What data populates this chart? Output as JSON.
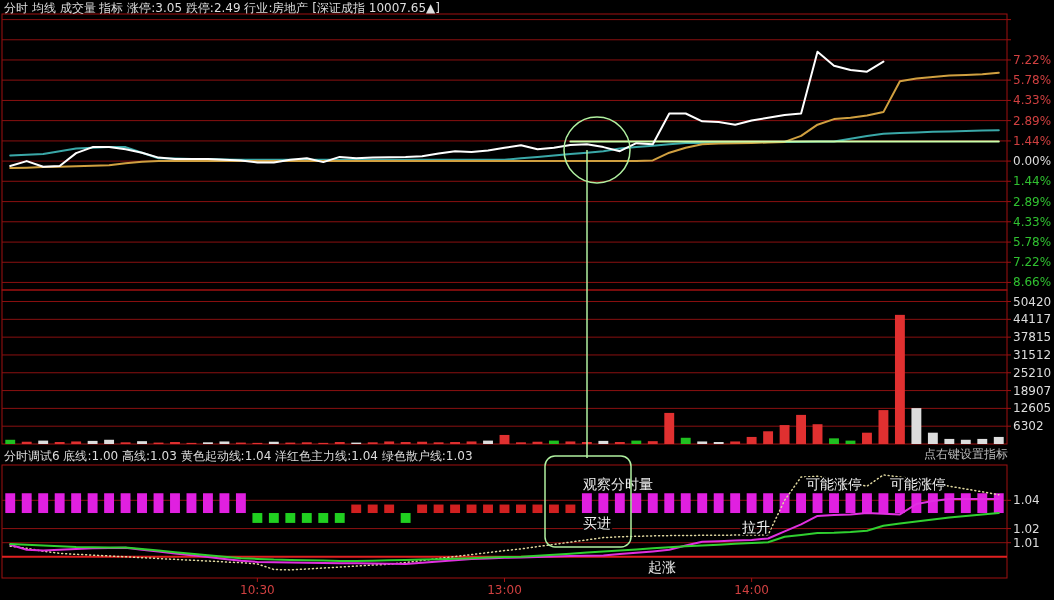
{
  "chart_data": [
    {
      "type": "line",
      "title": "分时 均线 成交量 指标 涨停:3.05 跌停:2.49 行业:房地产 [深证成指 10007.65▲]",
      "ylim": [
        -9.2,
        10.5
      ],
      "grid": "y",
      "tick_labels": "y",
      "categories": [
        null,
        null,
        null,
        null,
        null,
        null,
        null,
        null,
        null,
        null,
        null,
        null,
        null,
        null,
        null,
        null,
        null,
        null,
        null,
        null,
        null,
        null,
        null,
        null,
        null,
        null,
        null,
        null,
        null,
        null,
        null,
        null,
        null,
        null,
        null,
        null,
        null,
        null,
        null,
        null,
        null,
        null,
        null,
        null,
        null,
        null,
        null,
        null,
        null,
        null,
        null,
        null,
        null,
        null,
        null,
        null,
        null,
        null,
        null,
        null,
        null
      ],
      "yticks": [
        {
          "value": 10.1,
          "label": null
        },
        {
          "value": 8.66,
          "label": null
        },
        {
          "value": 7.22,
          "label": "7.22%"
        },
        {
          "value": 5.78,
          "label": "5.78%"
        },
        {
          "value": 4.33,
          "label": "4.33%"
        },
        {
          "value": 2.89,
          "label": "2.89%"
        },
        {
          "value": 1.44,
          "label": "1.44%"
        },
        {
          "value": 0,
          "label": "0.00%"
        },
        {
          "value": -1.44,
          "label": "1.44%"
        },
        {
          "value": -2.89,
          "label": "2.89%"
        },
        {
          "value": -4.33,
          "label": "4.33%"
        },
        {
          "value": -5.78,
          "label": "5.78%"
        },
        {
          "value": -7.22,
          "label": "7.22%"
        },
        {
          "value": -8.66,
          "label": "8.66%"
        }
      ],
      "series": [
        {
          "color": "#3aa8a8",
          "values": [
            0.4,
            0.45,
            0.5,
            0.7,
            0.9,
            0.95,
            1.0,
            1.0,
            0.6,
            0.2,
            0.18,
            0.16,
            0.14,
            0.12,
            0.1,
            0.1,
            0.1,
            0.1,
            0.1,
            0.1,
            0.1,
            0.1,
            0.1,
            0.1,
            0.1,
            0.1,
            0.1,
            0.1,
            0.1,
            0.1,
            0.1,
            0.2,
            0.3,
            0.4,
            0.5,
            0.6,
            0.7,
            0.9,
            1.0,
            1.1,
            1.2,
            1.3,
            1.3,
            1.32,
            1.34,
            1.35,
            1.36,
            1.37,
            1.38,
            1.4,
            1.4,
            1.6,
            1.8,
            1.95,
            2.0,
            2.05,
            2.1,
            2.12,
            2.15,
            2.18,
            2.2
          ]
        },
        {
          "color": "#d0a040",
          "values": [
            -0.5,
            -0.47,
            -0.43,
            -0.4,
            -0.37,
            -0.33,
            -0.3,
            -0.15,
            -0.05,
            0,
            0,
            0,
            0,
            0,
            0,
            0,
            0,
            0,
            0,
            0,
            0,
            0,
            0,
            0,
            0,
            0,
            0,
            0,
            0,
            0,
            0,
            0,
            0,
            0,
            0,
            0,
            0,
            0,
            0,
            0.05,
            0.6,
            0.95,
            1.2,
            1.25,
            1.28,
            1.3,
            1.33,
            1.37,
            1.8,
            2.6,
            3.0,
            3.1,
            3.25,
            3.5,
            5.7,
            5.9,
            6.0,
            6.1,
            6.15,
            6.2,
            6.3
          ]
        },
        {
          "color": "#ccffaa",
          "values": [
            null,
            null,
            null,
            null,
            null,
            null,
            null,
            null,
            null,
            null,
            null,
            null,
            null,
            null,
            null,
            null,
            null,
            null,
            null,
            null,
            null,
            null,
            null,
            null,
            null,
            null,
            null,
            null,
            null,
            null,
            null,
            null,
            null,
            null,
            1.4,
            1.4,
            1.4,
            1.4,
            1.4,
            1.4,
            1.4,
            1.4,
            1.4,
            1.4,
            1.4,
            1.4,
            1.4,
            1.4,
            1.4,
            1.4,
            1.4,
            1.4,
            1.4,
            1.4,
            1.4,
            1.4,
            1.4,
            1.4,
            1.4,
            1.4,
            1.4
          ]
        },
        {
          "color": "#ffffff",
          "values": [
            -0.35,
            0,
            -0.4,
            -0.35,
            0.57,
            1.0,
            1.0,
            0.85,
            0.6,
            0.25,
            0.14,
            0.14,
            0.14,
            0.1,
            0.05,
            -0.1,
            -0.1,
            0.1,
            0.2,
            -0.07,
            0.3,
            0.21,
            0.25,
            0.28,
            0.3,
            0.35,
            0.55,
            0.71,
            0.66,
            0.75,
            0.95,
            1.13,
            0.85,
            0.95,
            1.15,
            1.2,
            1.0,
            0.71,
            1.28,
            1.21,
            3.4,
            3.4,
            2.84,
            2.8,
            2.6,
            2.9,
            3.1,
            3.3,
            3.4,
            7.8,
            6.81,
            6.5,
            6.38,
            7.1,
            null,
            null,
            null,
            null,
            null,
            null,
            null
          ]
        }
      ]
    },
    {
      "type": "bar",
      "ylim": [
        0,
        54500
      ],
      "grid": "y",
      "tick_labels": "y",
      "categories": [
        null,
        null,
        null,
        null,
        null,
        null,
        null,
        null,
        null,
        null,
        null,
        null,
        null,
        null,
        null,
        null,
        null,
        null,
        null,
        null,
        null,
        null,
        null,
        null,
        null,
        null,
        null,
        null,
        null,
        null,
        null,
        null,
        null,
        null,
        null,
        null,
        null,
        null,
        null,
        null,
        null,
        null,
        null,
        null,
        null,
        null,
        null,
        null,
        null,
        null,
        null,
        null,
        null,
        null,
        null,
        null,
        null,
        null,
        null,
        null,
        null
      ],
      "yticks": [
        6302,
        12605,
        18907,
        25210,
        31512,
        37815,
        44117,
        50420
      ],
      "values": [
        1500,
        800,
        1200,
        700,
        900,
        1100,
        1500,
        600,
        1000,
        500,
        700,
        400,
        600,
        900,
        500,
        400,
        800,
        500,
        600,
        400,
        700,
        500,
        600,
        900,
        700,
        800,
        600,
        700,
        900,
        1200,
        3200,
        600,
        800,
        1200,
        900,
        700,
        1100,
        700,
        1200,
        1000,
        11000,
        2200,
        900,
        700,
        900,
        2500,
        4500,
        6700,
        10300,
        7000,
        2000,
        1200,
        4000,
        12000,
        45700,
        12700,
        4000,
        1800,
        1500,
        1800,
        2500
      ],
      "colors": [
        "#20c020",
        "#e03030",
        "#dddddd",
        "#e03030",
        "#e03030",
        "#dddddd",
        "#dddddd",
        "#e03030",
        "#dddddd",
        "#e03030",
        "#e03030",
        "#e03030",
        "#dddddd",
        "#dddddd",
        "#e03030",
        "#e03030",
        "#dddddd",
        "#e03030",
        "#e03030",
        "#e03030",
        "#e03030",
        "#dddddd",
        "#e03030",
        "#e03030",
        "#e03030",
        "#e03030",
        "#e03030",
        "#e03030",
        "#e03030",
        "#dddddd",
        "#e03030",
        "#e03030",
        "#e03030",
        "#20c020",
        "#e03030",
        "#e03030",
        "#dddddd",
        "#e03030",
        "#20c020",
        "#e03030",
        "#e03030",
        "#20c020",
        "#dddddd",
        "#dddddd",
        "#e03030",
        "#e03030",
        "#e03030",
        "#e03030",
        "#e03030",
        "#e03030",
        "#20c020",
        "#20c020",
        "#e03030",
        "#e03030",
        "#e03030",
        "#dddddd",
        "#dddddd",
        "#dddddd",
        "#dddddd",
        "#dddddd",
        "#dddddd"
      ]
    },
    {
      "type": "line",
      "title": "分时调试6  底线:1.00  高线:1.03  黄色起动线:1.04  洋红色主力线:1.04  绿色散户线:1.03",
      "ylim": [
        0.985,
        1.065
      ],
      "grid": "y",
      "categories": [
        null,
        null,
        null,
        null,
        null,
        null,
        null,
        null,
        null,
        null,
        null,
        null,
        null,
        null,
        null,
        "10:30",
        null,
        null,
        null,
        null,
        null,
        null,
        null,
        null,
        null,
        null,
        null,
        null,
        null,
        null,
        "13:00",
        null,
        null,
        null,
        null,
        null,
        null,
        null,
        null,
        null,
        null,
        null,
        null,
        null,
        null,
        "14:00",
        null,
        null,
        null,
        null,
        null,
        null,
        null,
        null,
        null,
        null,
        null,
        null,
        null,
        null,
        null
      ],
      "yticks": [
        1.01,
        1.02,
        1.04
      ],
      "ref_lines": [
        {
          "axis": "y",
          "value": 1.0,
          "color": "#e02020"
        }
      ],
      "series": [
        {
          "type": "bar",
          "color": "#e020e0",
          "base": [
            1.031,
            1.031,
            1.031,
            1.031,
            1.031,
            1.031,
            1.031,
            1.031,
            1.031,
            1.031,
            1.031,
            1.031,
            1.031,
            1.031,
            1.031,
            null,
            null,
            null,
            null,
            null,
            null,
            null,
            null,
            null,
            null,
            null,
            null,
            null,
            null,
            null,
            null,
            null,
            null,
            null,
            null,
            1.031,
            1.031,
            1.031,
            1.031,
            1.031,
            1.031,
            1.031,
            1.031,
            1.031,
            1.031,
            1.031,
            1.031,
            1.031,
            1.031,
            1.031,
            1.031,
            1.031,
            1.031,
            1.031,
            1.031,
            1.031,
            1.031,
            1.031,
            1.031,
            1.031,
            1.031
          ],
          "values": [
            0.014,
            0.014,
            0.014,
            0.014,
            0.014,
            0.014,
            0.014,
            0.014,
            0.014,
            0.014,
            0.014,
            0.014,
            0.014,
            0.014,
            0.014,
            null,
            null,
            null,
            null,
            null,
            null,
            null,
            null,
            null,
            null,
            null,
            null,
            null,
            null,
            null,
            null,
            null,
            null,
            null,
            null,
            0.014,
            0.014,
            0.014,
            0.014,
            0.014,
            0.014,
            0.014,
            0.014,
            0.014,
            0.014,
            0.014,
            0.014,
            0.014,
            0.014,
            0.014,
            0.014,
            0.014,
            0.014,
            0.014,
            0.014,
            0.014,
            0.014,
            0.014,
            0.014,
            0.014,
            0.014
          ]
        },
        {
          "type": "bar",
          "color": "#20d020",
          "base": [
            null,
            null,
            null,
            null,
            null,
            null,
            null,
            null,
            null,
            null,
            null,
            null,
            null,
            null,
            null,
            1.024,
            1.024,
            1.024,
            1.024,
            1.024,
            1.024,
            null,
            null,
            null,
            1.024,
            null,
            null,
            null,
            null,
            null,
            null,
            null,
            null,
            null,
            null,
            null,
            null,
            null,
            null,
            null,
            null,
            null,
            null,
            null,
            null,
            null,
            null,
            null,
            null,
            null,
            null,
            null,
            null,
            null,
            null,
            null,
            null,
            null,
            null,
            null,
            null
          ],
          "values": [
            null,
            null,
            null,
            null,
            null,
            null,
            null,
            null,
            null,
            null,
            null,
            null,
            null,
            null,
            null,
            0.007,
            0.007,
            0.007,
            0.007,
            0.007,
            0.007,
            null,
            null,
            null,
            0.007,
            null,
            null,
            null,
            null,
            null,
            null,
            null,
            null,
            null,
            null,
            null,
            null,
            null,
            null,
            null,
            null,
            null,
            null,
            null,
            null,
            null,
            null,
            null,
            null,
            null,
            null,
            null,
            null,
            null,
            null,
            null,
            null,
            null,
            null,
            null,
            null
          ]
        },
        {
          "type": "bar",
          "color": "#d02020",
          "base": [
            null,
            null,
            null,
            null,
            null,
            null,
            null,
            null,
            null,
            null,
            null,
            null,
            null,
            null,
            null,
            null,
            null,
            null,
            null,
            null,
            null,
            1.031,
            1.031,
            1.031,
            null,
            1.031,
            1.031,
            1.031,
            1.031,
            1.031,
            1.031,
            1.031,
            1.031,
            1.031,
            1.031,
            null,
            null,
            null,
            null,
            null,
            null,
            null,
            null,
            null,
            null,
            null,
            null,
            null,
            null,
            null,
            null,
            null,
            null,
            null,
            null,
            null,
            null,
            null,
            null,
            null,
            null
          ],
          "values": [
            null,
            null,
            null,
            null,
            null,
            null,
            null,
            null,
            null,
            null,
            null,
            null,
            null,
            null,
            null,
            null,
            null,
            null,
            null,
            null,
            null,
            0.006,
            0.006,
            0.006,
            null,
            0.006,
            0.006,
            0.006,
            0.006,
            0.006,
            0.006,
            0.006,
            0.006,
            0.006,
            0.006,
            null,
            null,
            null,
            null,
            null,
            null,
            null,
            null,
            null,
            null,
            null,
            null,
            null,
            null,
            null,
            null,
            null,
            null,
            null,
            null,
            null,
            null,
            null,
            null,
            null,
            null
          ]
        },
        {
          "color": "#e0d8a0",
          "line_style": "dotted",
          "values": [
            1.0075,
            1.006,
            1.004,
            1.0025,
            1.0018,
            1.0012,
            1.0006,
            1.0,
            0.9994,
            0.9988,
            0.9982,
            0.9976,
            0.997,
            0.9964,
            0.9958,
            0.995,
            0.991,
            0.9907,
            0.9914,
            0.9921,
            0.9928,
            0.9934,
            0.9941,
            0.9948,
            0.996,
            0.9974,
            0.9988,
            1.0002,
            1.0016,
            1.003,
            1.0044,
            1.0056,
            1.0072,
            1.0088,
            1.0104,
            1.012,
            1.0136,
            1.0142,
            1.0145,
            1.0148,
            1.015,
            1.0151,
            1.0152,
            1.0153,
            1.0154,
            1.0155,
            1.0155,
            1.04,
            1.0565,
            1.057,
            1.055,
            1.0525,
            1.05,
            1.058,
            1.0565,
            1.055,
            1.0525,
            1.05,
            1.048,
            1.046,
            1.044
          ]
        },
        {
          "color": "#e030e0",
          "values": [
            1.0085,
            1.005,
            1.0045,
            1.005,
            1.0055,
            1.006,
            1.0062,
            1.0064,
            1.005,
            1.0037,
            1.0024,
            1.0011,
            0.9998,
            0.9985,
            0.9972,
            0.9964,
            0.9962,
            0.996,
            0.9958,
            0.9957,
            0.9955,
            0.9954,
            0.9952,
            0.9951,
            0.995,
            0.9958,
            0.9967,
            0.9976,
            0.9985,
            0.9989,
            0.9993,
            0.9996,
            0.9999,
            1.0002,
            1.0005,
            1.0008,
            1.001,
            1.0019,
            1.0029,
            1.0038,
            1.005,
            1.008,
            1.0106,
            1.011,
            1.0115,
            1.012,
            1.013,
            1.018,
            1.023,
            1.029,
            1.0295,
            1.03,
            1.031,
            1.0305,
            1.03,
            1.0374,
            1.0395,
            1.041,
            1.041,
            1.041,
            1.041
          ]
        },
        {
          "color": "#30d030",
          "values": [
            1.009,
            1.0085,
            1.008,
            1.0075,
            1.007,
            1.0068,
            1.0065,
            1.0065,
            1.0055,
            1.0044,
            1.0033,
            1.0022,
            1.0011,
            1.0,
            0.999,
            0.9985,
            0.998,
            0.9978,
            0.9975,
            0.9973,
            0.9971,
            0.997,
            0.9972,
            0.9975,
            0.9978,
            0.998,
            0.9983,
            0.9986,
            0.999,
            0.9995,
            0.9998,
            1.0,
            1.0007,
            1.0015,
            1.0022,
            1.003,
            1.0037,
            1.0044,
            1.0052,
            1.006,
            1.0068,
            1.0075,
            1.008,
            1.0086,
            1.0092,
            1.0098,
            1.0103,
            1.0142,
            1.0155,
            1.0168,
            1.017,
            1.0175,
            1.0184,
            1.022,
            1.0235,
            1.025,
            1.0265,
            1.0278,
            1.029,
            1.03,
            1.031
          ]
        }
      ],
      "annotations": [
        "点右键设置指标",
        "观察分时量",
        "买进",
        "起涨",
        "拉升",
        "可能涨停",
        "可能涨停"
      ]
    }
  ]
}
